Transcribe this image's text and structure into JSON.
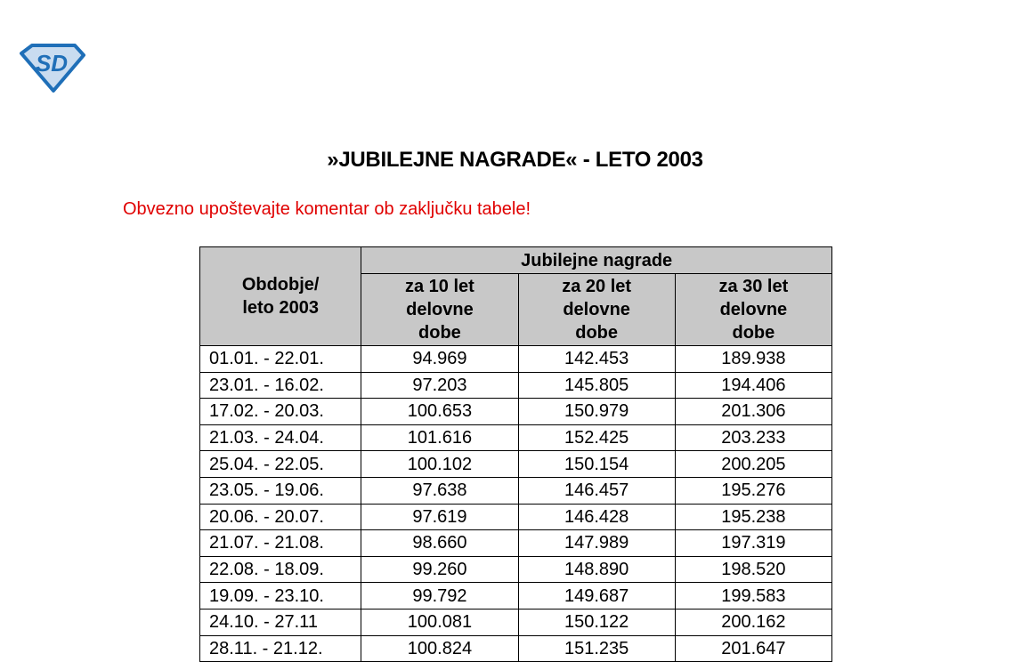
{
  "logo": {
    "text": "SD",
    "colors": {
      "outline": "#1f6fb8",
      "fill": "#c9dcf0"
    }
  },
  "title": "»JUBILEJNE NAGRADE« - LETO 2003",
  "note": "Obvezno upoštevajte komentar ob zaključku tabele!",
  "note_color": "#e00000",
  "table": {
    "period_header": "Obdobje/ leto 2003",
    "group_header": "Jubilejne nagrade",
    "columns": [
      "za 10 let delovne dobe",
      "za 20 let delovne dobe",
      "za 30 let delovne dobe"
    ],
    "rows": [
      {
        "period": "01.01. - 22.01.",
        "values": [
          "94.969",
          "142.453",
          "189.938"
        ]
      },
      {
        "period": "23.01. - 16.02.",
        "values": [
          "97.203",
          "145.805",
          "194.406"
        ]
      },
      {
        "period": "17.02. - 20.03.",
        "values": [
          "100.653",
          "150.979",
          "201.306"
        ]
      },
      {
        "period": "21.03. - 24.04.",
        "values": [
          "101.616",
          "152.425",
          "203.233"
        ]
      },
      {
        "period": "25.04. - 22.05.",
        "values": [
          "100.102",
          "150.154",
          "200.205"
        ]
      },
      {
        "period": "23.05. - 19.06.",
        "values": [
          "97.638",
          "146.457",
          "195.276"
        ]
      },
      {
        "period": "20.06. - 20.07.",
        "values": [
          "97.619",
          "146.428",
          "195.238"
        ]
      },
      {
        "period": "21.07. - 21.08.",
        "values": [
          "98.660",
          "147.989",
          "197.319"
        ]
      },
      {
        "period": "22.08. - 18.09.",
        "values": [
          "99.260",
          "148.890",
          "198.520"
        ]
      },
      {
        "period": "19.09. - 23.10.",
        "values": [
          "99.792",
          "149.687",
          "199.583"
        ]
      },
      {
        "period": "24.10. - 27.11",
        "values": [
          "100.081",
          "150.122",
          "200.162"
        ]
      },
      {
        "period": "28.11. - 21.12.",
        "values": [
          "100.824",
          "151.235",
          "201.647"
        ]
      }
    ]
  }
}
